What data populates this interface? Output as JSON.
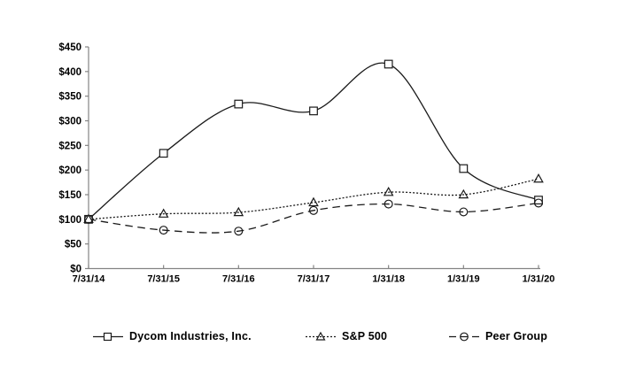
{
  "chart_data": {
    "type": "line",
    "x": [
      "7/31/14",
      "7/31/15",
      "7/31/16",
      "7/31/17",
      "1/31/18",
      "1/31/19",
      "1/31/20"
    ],
    "series": [
      {
        "name": "Dycom Industries, Inc.",
        "marker": "square",
        "line_style": "solid",
        "values": [
          100,
          234,
          334,
          320,
          415,
          203,
          139
        ]
      },
      {
        "name": "S&P 500",
        "marker": "triangle",
        "line_style": "dotted",
        "values": [
          100,
          111,
          114,
          134,
          155,
          150,
          182
        ]
      },
      {
        "name": "Peer Group",
        "marker": "circle",
        "line_style": "dashed",
        "values": [
          100,
          78,
          76,
          118,
          131,
          115,
          133
        ]
      }
    ],
    "ylim": [
      0,
      450
    ],
    "ytick_step": 50,
    "ytick_labels": [
      "$0",
      "$50",
      "$100",
      "$150",
      "$200",
      "$250",
      "$300",
      "$350",
      "$400",
      "$450"
    ],
    "grid": false,
    "legend_position": "bottom",
    "colors": {
      "line": "#1a1a1a",
      "axis": "#848484",
      "text": "#000000"
    }
  }
}
